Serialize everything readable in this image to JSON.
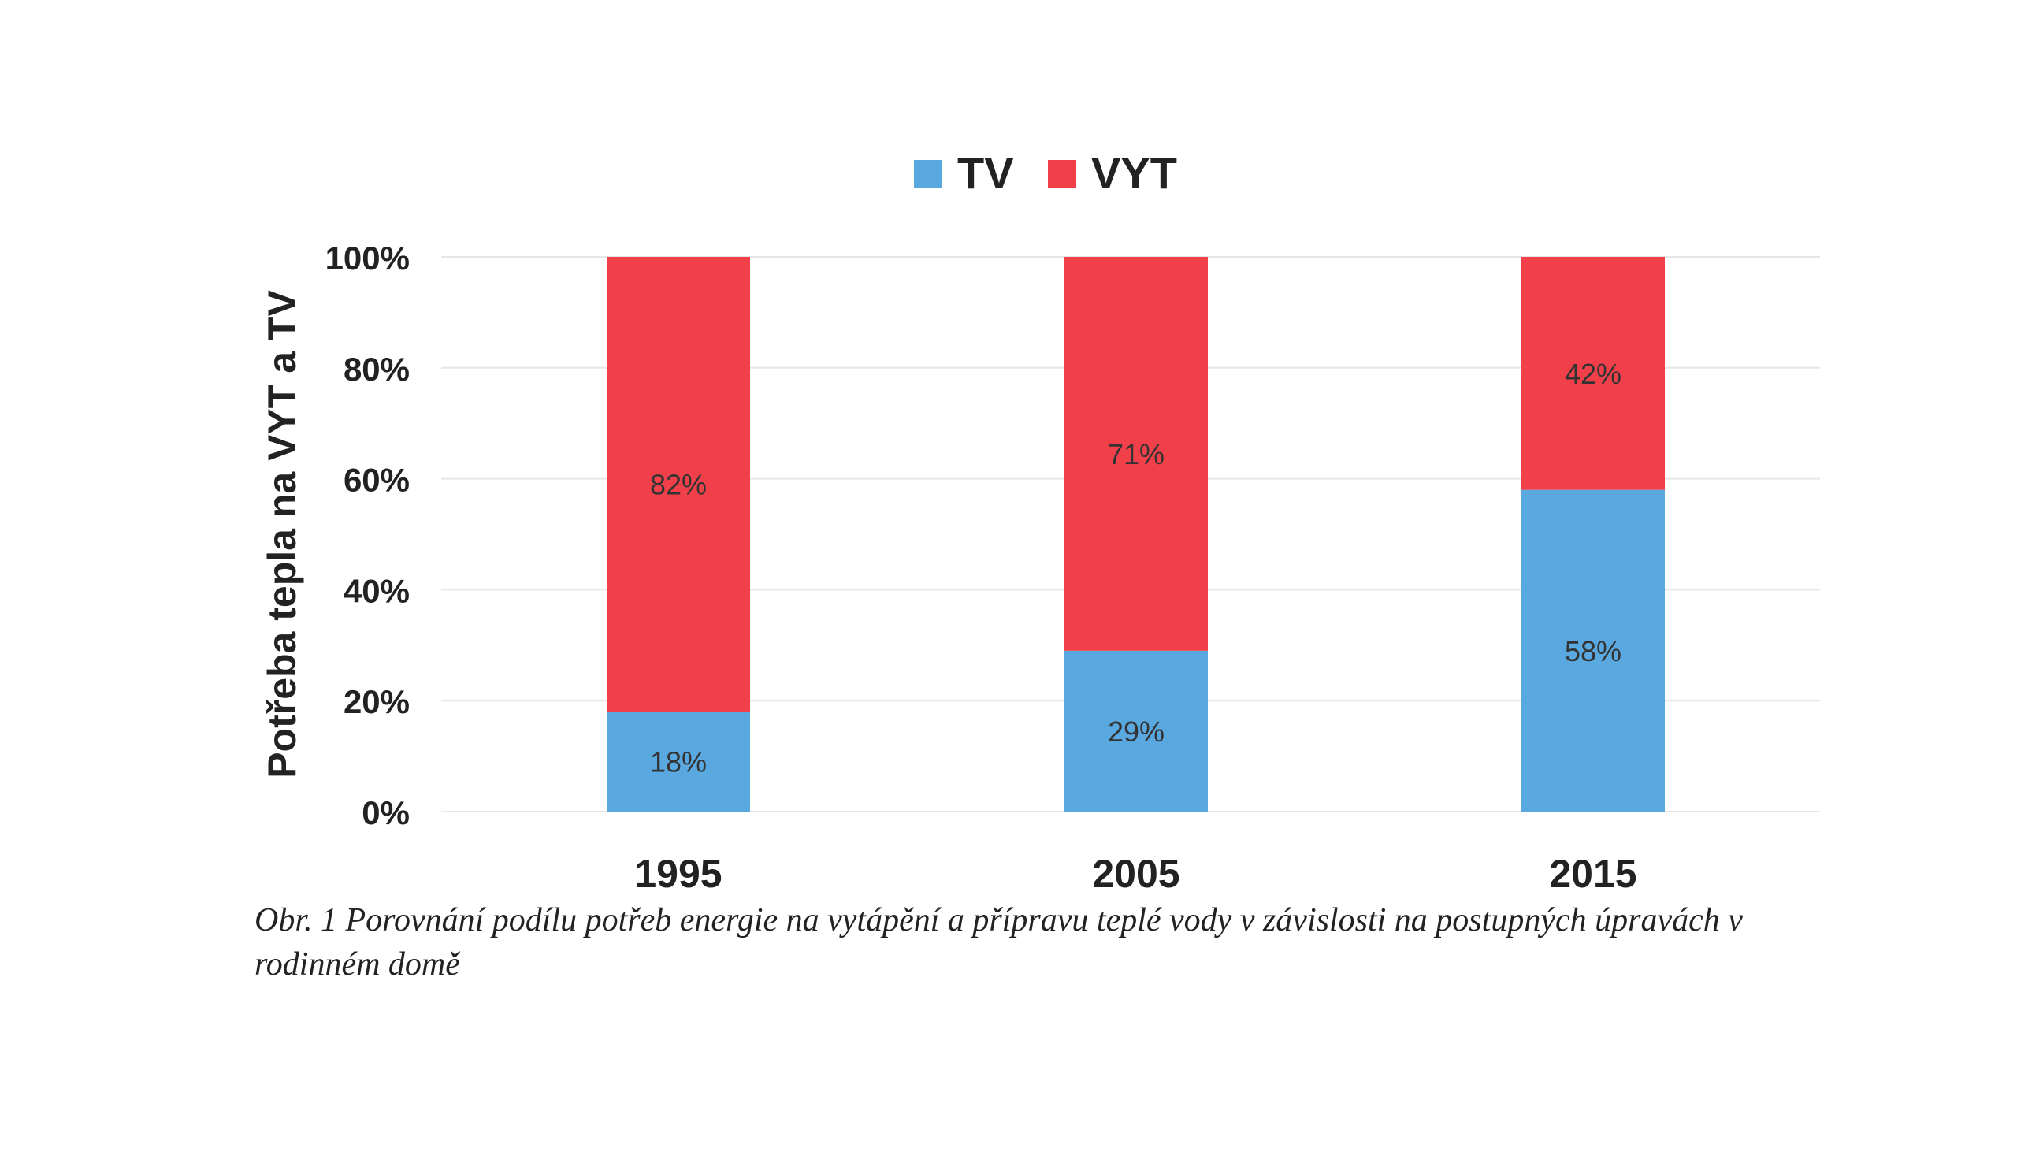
{
  "chart_data": {
    "type": "bar",
    "stacked": true,
    "categories": [
      "1995",
      "2005",
      "2015"
    ],
    "series": [
      {
        "name": "TV",
        "values": [
          18,
          29,
          58
        ],
        "labels": [
          "18%",
          "29%",
          "58%"
        ],
        "color": "#5aa8e0"
      },
      {
        "name": "VYT",
        "values": [
          82,
          71,
          42
        ],
        "labels": [
          "82%",
          "71%",
          "42%"
        ],
        "color": "#f2404a"
      }
    ],
    "ylabel": "Potřeba tepla na VYT a TV",
    "xlabel": "",
    "ylim": [
      0,
      100
    ],
    "yticks": [
      "0%",
      "20%",
      "40%",
      "60%",
      "80%",
      "100%"
    ],
    "grid": true,
    "legend": "top-center"
  },
  "caption": "Obr. 1 Porovnání podílu potřeb energie na vytápění a přípravu teplé vody v závislosti na postupných úpravách v rodinném domě"
}
